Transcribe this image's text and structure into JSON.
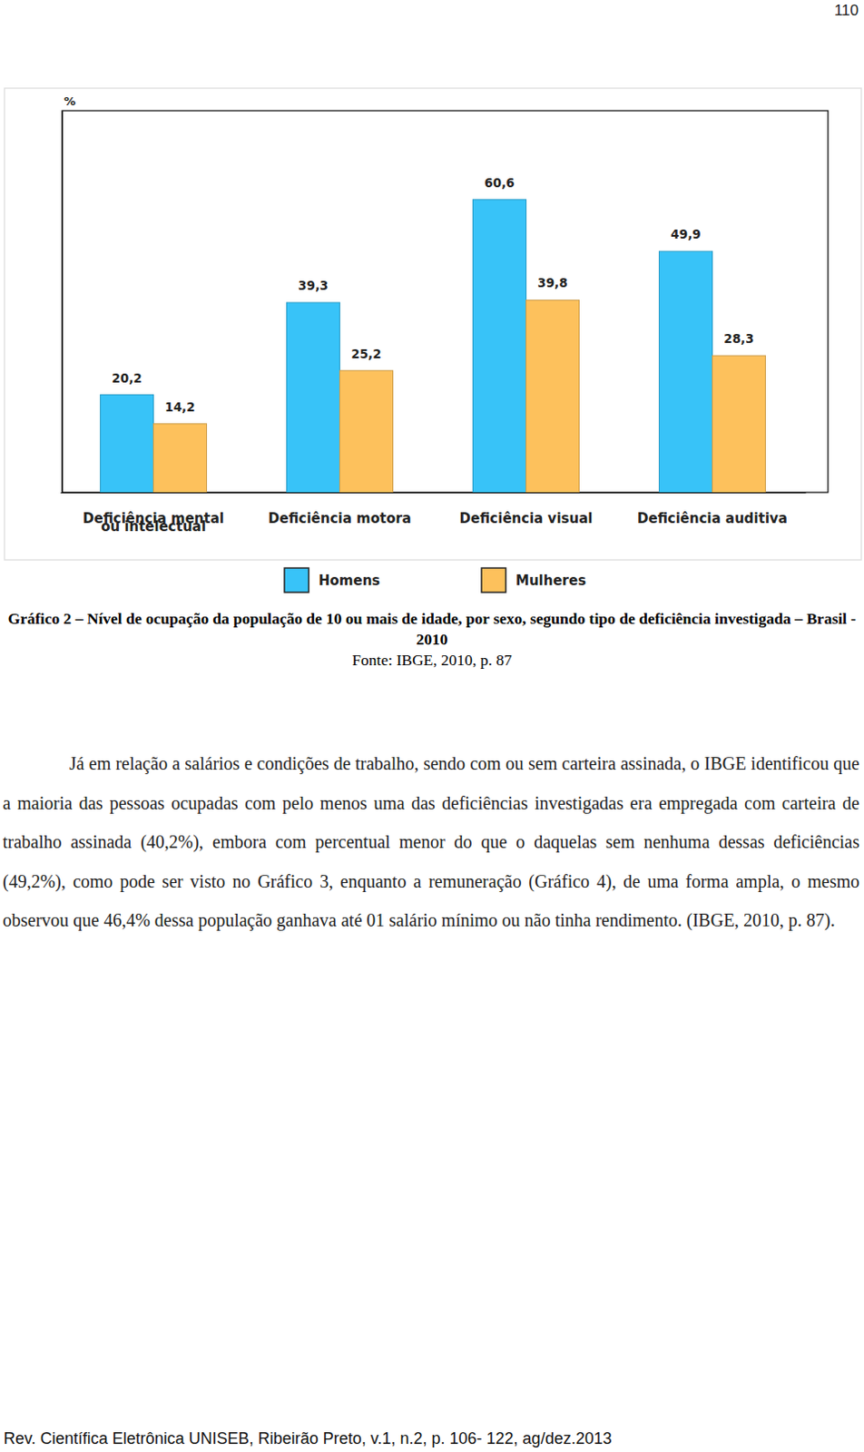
{
  "page_number": "110",
  "chart_data": {
    "type": "bar",
    "ylabel": "%",
    "categories": [
      "Deficiência mental\nou intelectual",
      "Deficiência motora",
      "Deficiência visual",
      "Deficiência auditiva"
    ],
    "series": [
      {
        "name": "Homens",
        "color": "#38c3f8",
        "values": [
          20.2,
          39.3,
          60.6,
          49.9
        ],
        "value_labels": [
          "20,2",
          "39,3",
          "60,6",
          "49,9"
        ]
      },
      {
        "name": "Mulheres",
        "color": "#fdc15c",
        "values": [
          14.2,
          25.2,
          39.8,
          28.3
        ],
        "value_labels": [
          "14,2",
          "25,2",
          "39,8",
          "28,3"
        ]
      }
    ],
    "ylim": [
      0,
      79
    ],
    "tick_labels": "x",
    "data_labels": true,
    "grid": false,
    "legend": "bottom"
  },
  "caption": {
    "title": "Gráfico 2 – Nível de ocupação da população de 10 ou mais de idade, por sexo, segundo tipo de deficiência investigada – Brasil - 2010",
    "source": "Fonte: IBGE, 2010, p. 87"
  },
  "body": {
    "paragraph": "Já em relação a salários e condições de trabalho, sendo com ou sem carteira assinada, o IBGE identificou que a maioria das pessoas ocupadas com pelo menos uma das deficiências investigadas era empregada com carteira de trabalho assinada (40,2%), embora com percentual menor do que o daquelas sem nenhuma dessas deficiências (49,2%), como pode ser visto no Gráfico 3, enquanto a remuneração (Gráfico 4), de uma forma ampla, o mesmo observou que 46,4% dessa população ganhava até 01 salário mínimo ou não tinha rendimento. (IBGE, 2010, p. 87)."
  },
  "footer": "Rev. Científica Eletrônica UNISEB, Ribeirão Preto, v.1, n.2, p. 106- 122, ag/dez.2013"
}
